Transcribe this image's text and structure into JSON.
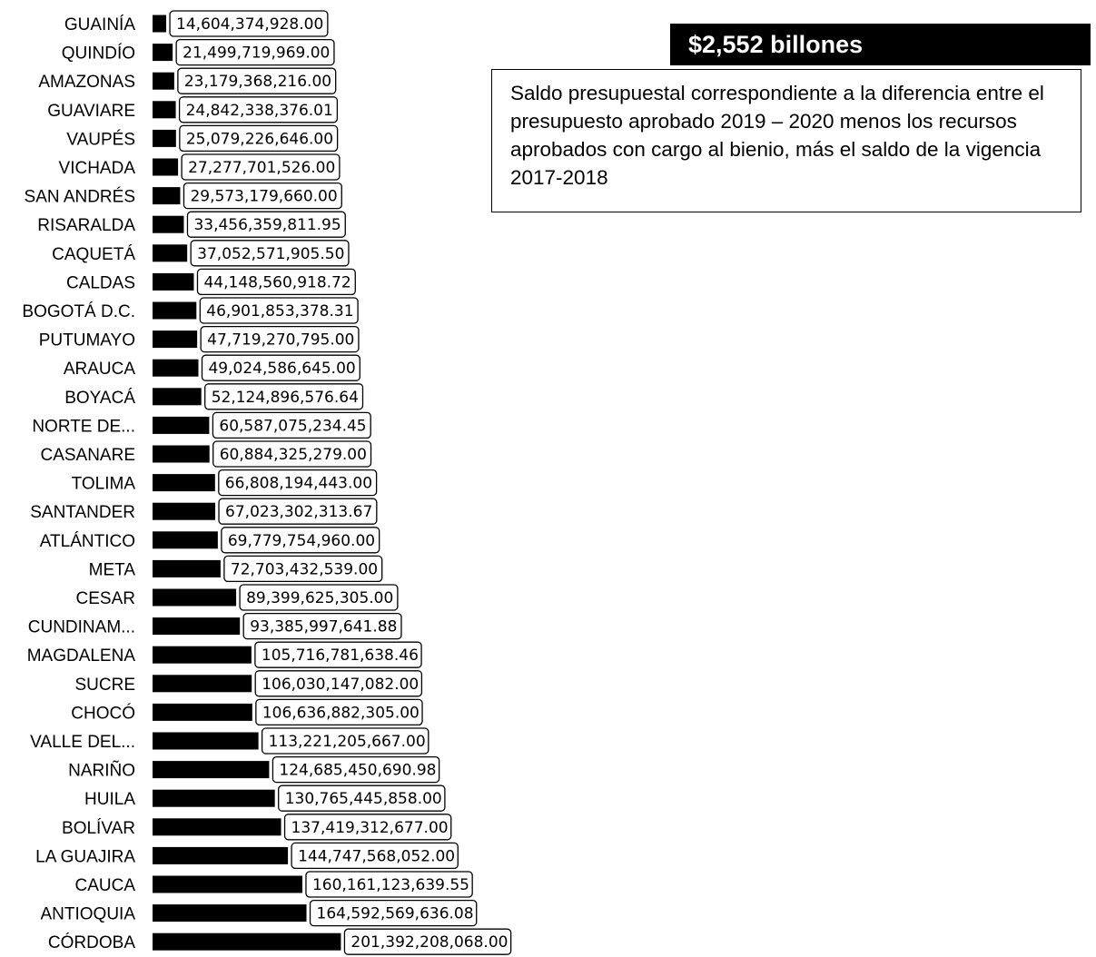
{
  "chart_data": {
    "type": "bar",
    "orientation": "horizontal",
    "categories": [
      "GUAINÍA",
      "QUINDÍO",
      "AMAZONAS",
      "GUAVIARE",
      "VAUPÉS",
      "VICHADA",
      "SAN ANDRÉS",
      "RISARALDA",
      "CAQUETÁ",
      "CALDAS",
      "BOGOTÁ D.C.",
      "PUTUMAYO",
      "ARAUCA",
      "BOYACÁ",
      "NORTE DE...",
      "CASANARE",
      "TOLIMA",
      "SANTANDER",
      "ATLÁNTICO",
      "META",
      "CESAR",
      "CUNDINAM...",
      "MAGDALENA",
      "SUCRE",
      "CHOCÓ",
      "VALLE DEL...",
      "NARIÑO",
      "HUILA",
      "BOLÍVAR",
      "LA GUAJIRA",
      "CAUCA",
      "ANTIOQUIA",
      "CÓRDOBA"
    ],
    "values": [
      14604374928.0,
      21499719969.0,
      23179368216.0,
      24842338376.01,
      25079226646.0,
      27277701526.0,
      29573179660.0,
      33456359811.95,
      37052571905.5,
      44148560918.72,
      46901853378.31,
      47719270795.0,
      49024586645.0,
      52124896576.64,
      60587075234.45,
      60884325279.0,
      66808194443.0,
      67023302313.67,
      69779754960.0,
      72703432539.0,
      89399625305.0,
      93385997641.88,
      105716781638.46,
      106030147082.0,
      106636882305.0,
      113221205667.0,
      124685450690.98,
      130765445858.0,
      137419312677.0,
      144747568052.0,
      160161123639.55,
      164592569636.08,
      201392208068.0
    ],
    "value_labels": [
      "14,604,374,928.00",
      "21,499,719,969.00",
      "23,179,368,216.00",
      "24,842,338,376.01",
      "25,079,226,646.00",
      "27,277,701,526.00",
      "29,573,179,660.00",
      "33,456,359,811.95",
      "37,052,571,905.50",
      "44,148,560,918.72",
      "46,901,853,378.31",
      "47,719,270,795.00",
      "49,024,586,645.00",
      "52,124,896,576.64",
      "60,587,075,234.45",
      "60,884,325,279.00",
      "66,808,194,443.00",
      "67,023,302,313.67",
      "69,779,754,960.00",
      "72,703,432,539.00",
      "89,399,625,305.00",
      "93,385,997,641.88",
      "105,716,781,638.46",
      "106,030,147,082.00",
      "106,636,882,305.00",
      "113,221,205,667.00",
      "124,685,450,690.98",
      "130,765,445,858.00",
      "137,419,312,677.00",
      "144,747,568,052.00",
      "160,161,123,639.55",
      "164,592,569,636.08",
      "201,392,208,068.00"
    ],
    "bar_color": "#000000",
    "title": "",
    "xlabel": "",
    "ylabel": "",
    "grid": false,
    "legend": false
  },
  "callout": {
    "title": "$2,552 billones",
    "text": "Saldo presupuestal correspondiente a la diferencia entre el presupuesto aprobado 2019 – 2020 menos los recursos aprobados con cargo al bienio, más el saldo de la vigencia 2017-2018"
  }
}
